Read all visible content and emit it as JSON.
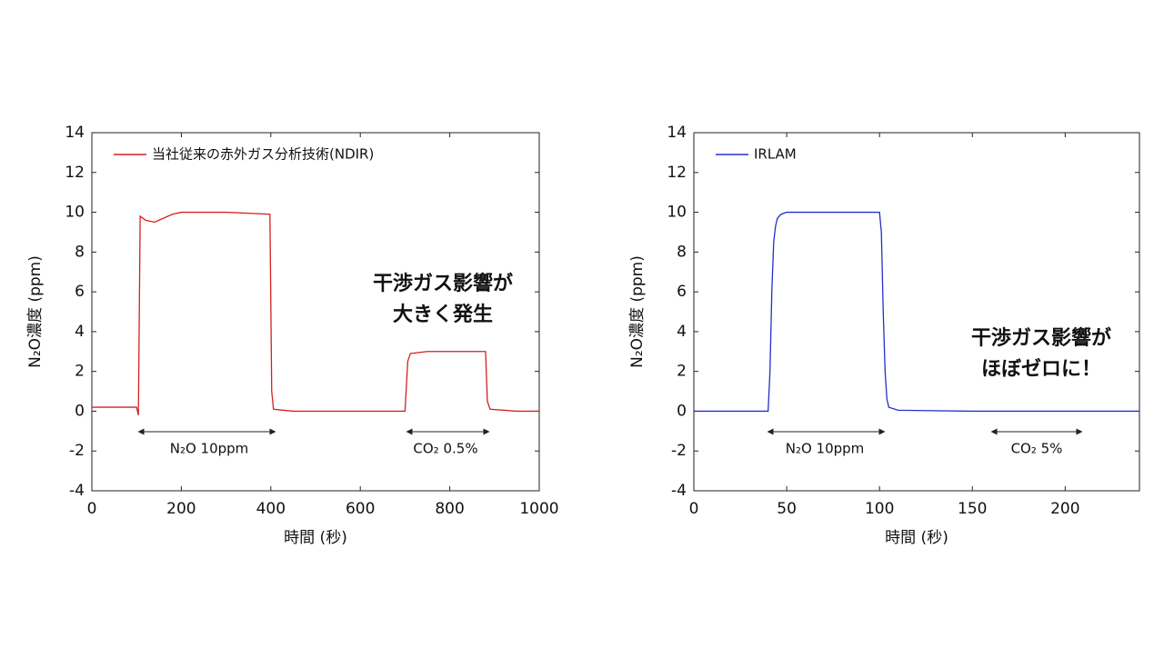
{
  "chart_data": [
    {
      "type": "line",
      "xlabel": "時間 (秒)",
      "ylabel": "N₂O濃度 (ppm)",
      "xlim": [
        0,
        1000
      ],
      "xticks": [
        0,
        200,
        400,
        600,
        800,
        1000
      ],
      "ylim": [
        -4,
        14
      ],
      "yticks": [
        -4,
        -2,
        0,
        2,
        4,
        6,
        8,
        10,
        12,
        14
      ],
      "legend": "upper left",
      "x": [
        0,
        50,
        100,
        104,
        108,
        120,
        140,
        160,
        180,
        200,
        250,
        300,
        350,
        398,
        402,
        406,
        450,
        500,
        600,
        700,
        706,
        712,
        750,
        800,
        850,
        880,
        884,
        890,
        950,
        1000
      ],
      "series": [
        {
          "name": "当社従来の赤外ガス分析技術(NDIR)",
          "color": "#d42020",
          "values": [
            0.2,
            0.2,
            0.2,
            -0.2,
            9.8,
            9.6,
            9.5,
            9.7,
            9.9,
            10.0,
            10.0,
            10.0,
            9.95,
            9.9,
            1,
            0.1,
            0.0,
            0.0,
            0.0,
            0.0,
            2.5,
            2.9,
            3.0,
            3.0,
            3.0,
            3.0,
            0.5,
            0.1,
            0.0,
            0.0
          ]
        }
      ],
      "annotations": [
        "N₂O 10ppm",
        "CO₂ 0.5%",
        "干渉ガス影響が",
        "大きく発生"
      ]
    },
    {
      "type": "line",
      "xlabel": "時間 (秒)",
      "ylabel": "N₂O濃度 (ppm)",
      "xlim": [
        0,
        240
      ],
      "xticks": [
        0,
        50,
        100,
        150,
        200
      ],
      "ylim": [
        -4,
        14
      ],
      "yticks": [
        -4,
        -2,
        0,
        2,
        4,
        6,
        8,
        10,
        12,
        14
      ],
      "legend": "upper left",
      "x": [
        0,
        40,
        41,
        42,
        43,
        44,
        45,
        47,
        50,
        60,
        80,
        100,
        101,
        102,
        103,
        104,
        105,
        110,
        150,
        200,
        240
      ],
      "series": [
        {
          "name": "IRLAM",
          "color": "#2430c8",
          "values": [
            0,
            0,
            2,
            6,
            8.5,
            9.3,
            9.7,
            9.9,
            10,
            10,
            10,
            10,
            9,
            5,
            2,
            0.6,
            0.2,
            0.05,
            0,
            0,
            0
          ]
        }
      ],
      "annotations": [
        "N₂O 10ppm",
        "CO₂ 5%",
        "干渉ガス影響が",
        "ほぼゼロに！"
      ]
    }
  ]
}
